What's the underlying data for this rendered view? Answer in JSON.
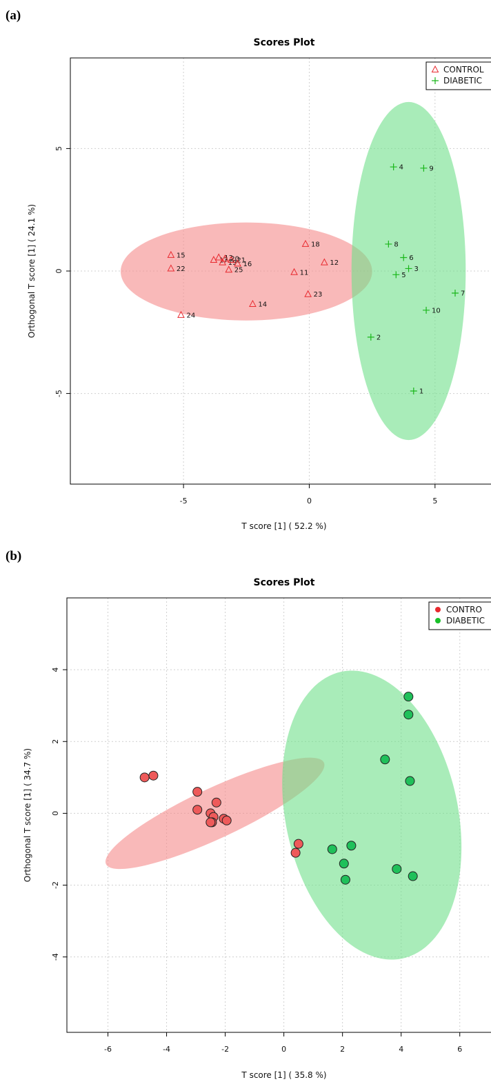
{
  "panels": [
    {
      "label": "(a)",
      "chart_data": {
        "type": "scatter",
        "title": "Scores Plot",
        "xlabel": "T score [1] ( 52.2 %)",
        "ylabel": "Orthogonal T score [1] ( 24.1 %)",
        "xlim": [
          -9.5,
          7.5
        ],
        "ylim": [
          -8.7,
          8.7
        ],
        "xticks": [
          -5,
          0,
          5
        ],
        "yticks": [
          -5,
          0,
          5
        ],
        "xtick_labels": [
          "-5",
          "0",
          "5"
        ],
        "ytick_labels": [
          "-5",
          "0",
          "5"
        ],
        "grid": true,
        "legend_position": "top-right",
        "marker_style": "symbol",
        "colors": {
          "CONTROL": "#e8292e",
          "DIABETIC": "#19b619",
          "control_fill": "#f58a8a",
          "diabetic_fill": "#6fe08a"
        },
        "series": [
          {
            "name": "CONTROL",
            "marker": "triangle",
            "points": [
              {
                "label": "15",
                "x": -5.5,
                "y": 0.65
              },
              {
                "label": "22",
                "x": -5.5,
                "y": 0.1
              },
              {
                "label": "24",
                "x": -5.1,
                "y": -1.8
              },
              {
                "label": "17",
                "x": -3.8,
                "y": 0.45
              },
              {
                "label": "13",
                "x": -3.6,
                "y": 0.55
              },
              {
                "label": "20",
                "x": -3.35,
                "y": 0.5
              },
              {
                "label": "19",
                "x": -3.45,
                "y": 0.35
              },
              {
                "label": "21",
                "x": -3.1,
                "y": 0.45
              },
              {
                "label": "16",
                "x": -2.85,
                "y": 0.3
              },
              {
                "label": "25",
                "x": -3.2,
                "y": 0.05
              },
              {
                "label": "14",
                "x": -2.25,
                "y": -1.35
              },
              {
                "label": "11",
                "x": -0.6,
                "y": -0.05
              },
              {
                "label": "18",
                "x": -0.15,
                "y": 1.1
              },
              {
                "label": "23",
                "x": -0.05,
                "y": -0.95
              },
              {
                "label": "12",
                "x": 0.6,
                "y": 0.35
              }
            ]
          },
          {
            "name": "DIABETIC",
            "marker": "plus",
            "points": [
              {
                "label": "4",
                "x": 3.35,
                "y": 4.25
              },
              {
                "label": "9",
                "x": 4.55,
                "y": 4.2
              },
              {
                "label": "8",
                "x": 3.15,
                "y": 1.1
              },
              {
                "label": "6",
                "x": 3.75,
                "y": 0.55
              },
              {
                "label": "3",
                "x": 3.95,
                "y": 0.1
              },
              {
                "label": "5",
                "x": 3.45,
                "y": -0.15
              },
              {
                "label": "7",
                "x": 5.8,
                "y": -0.9
              },
              {
                "label": "10",
                "x": 4.65,
                "y": -1.6
              },
              {
                "label": "2",
                "x": 2.45,
                "y": -2.7
              },
              {
                "label": "1",
                "x": 4.15,
                "y": -4.9
              }
            ]
          }
        ],
        "ellipses": [
          {
            "series": "CONTROL",
            "cx": -2.5,
            "cy": -0.02,
            "rx": 5.0,
            "ry": 2.0,
            "angle": 0
          },
          {
            "series": "DIABETIC",
            "cx": 3.95,
            "cy": 0,
            "rx": 2.27,
            "ry": 6.9,
            "angle": 0
          }
        ]
      }
    },
    {
      "label": "(b)",
      "chart_data": {
        "type": "scatter",
        "title": "Scores Plot",
        "xlabel": "T score [1] ( 35.8 %)",
        "ylabel": "Orthogonal T score [1] ( 34.7 %)",
        "xlim": [
          -7.4,
          7.3
        ],
        "ylim": [
          -6.1,
          6.0
        ],
        "xticks": [
          -6,
          -4,
          -2,
          0,
          2,
          4,
          6
        ],
        "yticks": [
          -4,
          -2,
          0,
          2,
          4
        ],
        "xtick_labels": [
          "-6",
          "-4",
          "-2",
          "0",
          "2",
          "4",
          "6"
        ],
        "ytick_labels": [
          "-4",
          "-2",
          "0",
          "2",
          "4"
        ],
        "grid": true,
        "legend_position": "top-right",
        "marker_style": "filled-circle",
        "colors": {
          "CONTRO": "#e8292e",
          "DIABETIC": "#19b619",
          "control_fill": "#f58a8a",
          "diabetic_fill": "#6fe08a"
        },
        "series": [
          {
            "name": "CONTRO",
            "marker": "circle",
            "points": [
              {
                "x": -4.75,
                "y": 1.0
              },
              {
                "x": -4.45,
                "y": 1.05
              },
              {
                "x": -2.95,
                "y": 0.6
              },
              {
                "x": -2.95,
                "y": 0.1
              },
              {
                "x": -2.3,
                "y": 0.3
              },
              {
                "x": -2.5,
                "y": 0.0
              },
              {
                "x": -2.4,
                "y": -0.1
              },
              {
                "x": -2.45,
                "y": -0.25
              },
              {
                "x": -2.5,
                "y": -0.25
              },
              {
                "x": -2.05,
                "y": -0.15
              },
              {
                "x": -1.95,
                "y": -0.2
              },
              {
                "x": 0.5,
                "y": -0.85
              },
              {
                "x": 0.4,
                "y": -1.1
              }
            ]
          },
          {
            "name": "DIABETIC",
            "marker": "circle",
            "points": [
              {
                "x": 4.25,
                "y": 3.25
              },
              {
                "x": 4.25,
                "y": 2.75
              },
              {
                "x": 3.45,
                "y": 1.5
              },
              {
                "x": 4.3,
                "y": 0.9
              },
              {
                "x": 2.3,
                "y": -0.9
              },
              {
                "x": 1.65,
                "y": -1.0
              },
              {
                "x": 2.05,
                "y": -1.4
              },
              {
                "x": 2.1,
                "y": -1.85
              },
              {
                "x": 3.85,
                "y": -1.55
              },
              {
                "x": 4.4,
                "y": -1.75
              }
            ]
          }
        ],
        "ellipses": [
          {
            "series": "CONTRO",
            "cx": -2.35,
            "cy": 0.0,
            "rx": 4.1,
            "ry": 0.7,
            "angle": -25
          },
          {
            "series": "DIABETIC",
            "cx": 3.0,
            "cy": -0.05,
            "rx": 5.0,
            "ry": 2.4,
            "angle": 78
          }
        ]
      }
    }
  ]
}
